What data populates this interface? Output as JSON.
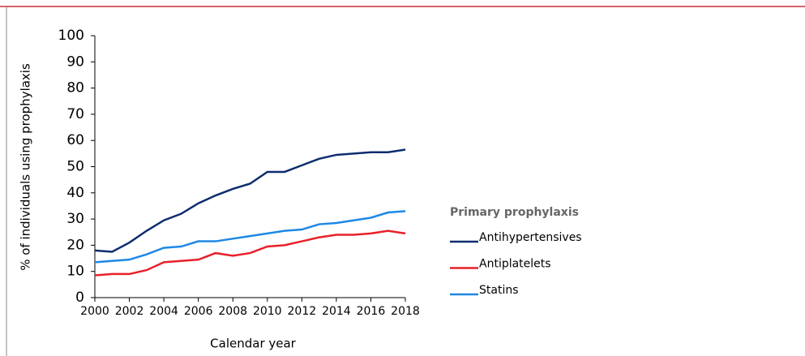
{
  "chart_data": {
    "type": "line",
    "x_label": "Calendar year",
    "y_label": "% of individuals using prophylaxis",
    "legend_title": "Primary prophylaxis",
    "x": [
      2000,
      2001,
      2002,
      2003,
      2004,
      2005,
      2006,
      2007,
      2008,
      2009,
      2010,
      2011,
      2012,
      2013,
      2014,
      2015,
      2016,
      2017,
      2018
    ],
    "series": [
      {
        "name": "Antihypertensives",
        "color": "#0d2d6e",
        "values": [
          18,
          17.5,
          21,
          25.5,
          29.5,
          32,
          36,
          39,
          41.5,
          43.5,
          48,
          48,
          50.5,
          53,
          54.5,
          55,
          55.5,
          55.5,
          56.5
        ]
      },
      {
        "name": "Antiplatelets",
        "color": "#e8202a",
        "values": [
          8.5,
          9,
          9,
          10.5,
          13.5,
          14,
          14.5,
          17,
          16,
          17,
          19.5,
          20,
          21.5,
          23,
          24,
          24,
          24.5,
          25.5,
          24.5
        ]
      },
      {
        "name": "Statins",
        "color": "#1e88e5",
        "values": [
          13.5,
          14,
          14.5,
          16.5,
          19,
          19.5,
          21.5,
          21.5,
          22.5,
          23.5,
          24.5,
          25.5,
          26,
          28,
          28.5,
          29.5,
          30.5,
          32.5,
          33
        ]
      }
    ],
    "xlim": [
      2000,
      2018
    ],
    "xticks": [
      2000,
      2002,
      2004,
      2006,
      2008,
      2010,
      2012,
      2014,
      2016,
      2018
    ],
    "ylim": [
      0,
      100
    ],
    "yticks": [
      0,
      10,
      20,
      30,
      40,
      50,
      60,
      70,
      80,
      90,
      100
    ],
    "grid": false
  }
}
